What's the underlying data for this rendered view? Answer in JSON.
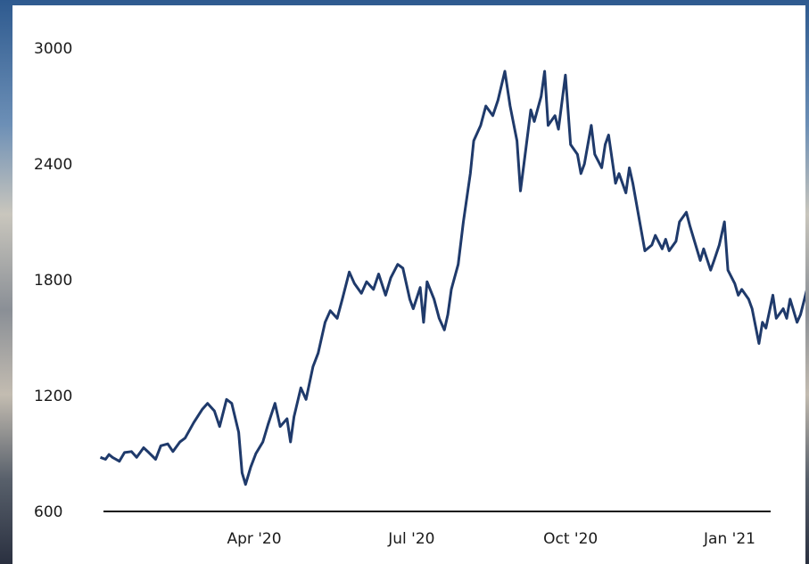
{
  "colors": {
    "line": "#1f3a6b",
    "axis": "#111111",
    "card": "#ffffff"
  },
  "chart_data": {
    "type": "line",
    "title": "",
    "xlabel": "",
    "ylabel": "",
    "ylim": [
      600,
      3000
    ],
    "y_ticks": [
      "3000",
      "2400",
      "1800",
      "1200",
      "600"
    ],
    "x_ticks": [
      {
        "label": "Apr '20",
        "date": "2020-04-01"
      },
      {
        "label": "Jul '20",
        "date": "2020-07-01"
      },
      {
        "label": "Oct '20",
        "date": "2020-10-01"
      },
      {
        "label": "Jan '21",
        "date": "2021-01-01"
      }
    ],
    "grid": false,
    "series": [
      {
        "name": "",
        "points": [
          [
            "2020-01-03",
            880
          ],
          [
            "2020-01-06",
            870
          ],
          [
            "2020-01-08",
            895
          ],
          [
            "2020-01-10",
            880
          ],
          [
            "2020-01-14",
            860
          ],
          [
            "2020-01-17",
            905
          ],
          [
            "2020-01-21",
            910
          ],
          [
            "2020-01-24",
            880
          ],
          [
            "2020-01-28",
            930
          ],
          [
            "2020-01-31",
            905
          ],
          [
            "2020-02-04",
            870
          ],
          [
            "2020-02-07",
            940
          ],
          [
            "2020-02-11",
            950
          ],
          [
            "2020-02-14",
            910
          ],
          [
            "2020-02-18",
            960
          ],
          [
            "2020-02-21",
            980
          ],
          [
            "2020-02-26",
            1060
          ],
          [
            "2020-03-02",
            1130
          ],
          [
            "2020-03-05",
            1160
          ],
          [
            "2020-03-09",
            1120
          ],
          [
            "2020-03-12",
            1040
          ],
          [
            "2020-03-16",
            1180
          ],
          [
            "2020-03-19",
            1160
          ],
          [
            "2020-03-23",
            1010
          ],
          [
            "2020-03-25",
            800
          ],
          [
            "2020-03-27",
            740
          ],
          [
            "2020-03-30",
            830
          ],
          [
            "2020-04-02",
            900
          ],
          [
            "2020-04-06",
            960
          ],
          [
            "2020-04-09",
            1050
          ],
          [
            "2020-04-13",
            1160
          ],
          [
            "2020-04-16",
            1040
          ],
          [
            "2020-04-20",
            1080
          ],
          [
            "2020-04-22",
            960
          ],
          [
            "2020-04-24",
            1090
          ],
          [
            "2020-04-28",
            1240
          ],
          [
            "2020-05-01",
            1180
          ],
          [
            "2020-05-05",
            1350
          ],
          [
            "2020-05-08",
            1420
          ],
          [
            "2020-05-12",
            1580
          ],
          [
            "2020-05-15",
            1640
          ],
          [
            "2020-05-19",
            1600
          ],
          [
            "2020-05-22",
            1700
          ],
          [
            "2020-05-26",
            1840
          ],
          [
            "2020-05-29",
            1780
          ],
          [
            "2020-06-02",
            1730
          ],
          [
            "2020-06-05",
            1790
          ],
          [
            "2020-06-09",
            1750
          ],
          [
            "2020-06-12",
            1830
          ],
          [
            "2020-06-16",
            1720
          ],
          [
            "2020-06-19",
            1810
          ],
          [
            "2020-06-23",
            1880
          ],
          [
            "2020-06-26",
            1860
          ],
          [
            "2020-06-30",
            1700
          ],
          [
            "2020-07-02",
            1650
          ],
          [
            "2020-07-06",
            1760
          ],
          [
            "2020-07-08",
            1580
          ],
          [
            "2020-07-10",
            1790
          ],
          [
            "2020-07-14",
            1700
          ],
          [
            "2020-07-17",
            1600
          ],
          [
            "2020-07-20",
            1540
          ],
          [
            "2020-07-22",
            1620
          ],
          [
            "2020-07-24",
            1750
          ],
          [
            "2020-07-28",
            1880
          ],
          [
            "2020-07-31",
            2100
          ],
          [
            "2020-08-04",
            2350
          ],
          [
            "2020-08-06",
            2520
          ],
          [
            "2020-08-10",
            2600
          ],
          [
            "2020-08-13",
            2700
          ],
          [
            "2020-08-17",
            2650
          ],
          [
            "2020-08-20",
            2730
          ],
          [
            "2020-08-24",
            2880
          ],
          [
            "2020-08-27",
            2700
          ],
          [
            "2020-08-31",
            2520
          ],
          [
            "2020-09-02",
            2260
          ],
          [
            "2020-09-04",
            2400
          ],
          [
            "2020-09-08",
            2680
          ],
          [
            "2020-09-10",
            2620
          ],
          [
            "2020-09-14",
            2750
          ],
          [
            "2020-09-16",
            2880
          ],
          [
            "2020-09-18",
            2600
          ],
          [
            "2020-09-22",
            2650
          ],
          [
            "2020-09-24",
            2580
          ],
          [
            "2020-09-28",
            2860
          ],
          [
            "2020-10-01",
            2500
          ],
          [
            "2020-10-05",
            2450
          ],
          [
            "2020-10-07",
            2350
          ],
          [
            "2020-10-09",
            2400
          ],
          [
            "2020-10-13",
            2600
          ],
          [
            "2020-10-15",
            2450
          ],
          [
            "2020-10-19",
            2380
          ],
          [
            "2020-10-21",
            2500
          ],
          [
            "2020-10-23",
            2550
          ],
          [
            "2020-10-27",
            2300
          ],
          [
            "2020-10-29",
            2350
          ],
          [
            "2020-11-02",
            2250
          ],
          [
            "2020-11-04",
            2380
          ],
          [
            "2020-11-06",
            2300
          ],
          [
            "2020-11-10",
            2100
          ],
          [
            "2020-11-13",
            1950
          ],
          [
            "2020-11-17",
            1980
          ],
          [
            "2020-11-19",
            2030
          ],
          [
            "2020-11-23",
            1960
          ],
          [
            "2020-11-25",
            2010
          ],
          [
            "2020-11-27",
            1950
          ],
          [
            "2020-12-01",
            2000
          ],
          [
            "2020-12-03",
            2100
          ],
          [
            "2020-12-07",
            2150
          ],
          [
            "2020-12-09",
            2080
          ],
          [
            "2020-12-11",
            2020
          ],
          [
            "2020-12-15",
            1900
          ],
          [
            "2020-12-17",
            1960
          ],
          [
            "2020-12-21",
            1850
          ],
          [
            "2020-12-23",
            1900
          ],
          [
            "2020-12-26",
            1980
          ],
          [
            "2020-12-29",
            2100
          ],
          [
            "2020-12-31",
            1850
          ],
          [
            "2021-01-04",
            1780
          ],
          [
            "2021-01-06",
            1720
          ],
          [
            "2021-01-08",
            1750
          ],
          [
            "2021-01-12",
            1700
          ],
          [
            "2021-01-14",
            1650
          ],
          [
            "2021-01-18",
            1470
          ],
          [
            "2021-01-20",
            1580
          ],
          [
            "2021-01-22",
            1550
          ],
          [
            "2021-01-26",
            1720
          ],
          [
            "2021-01-28",
            1600
          ],
          [
            "2021-02-01",
            1650
          ],
          [
            "2021-02-03",
            1600
          ],
          [
            "2021-02-05",
            1700
          ],
          [
            "2021-02-09",
            1580
          ],
          [
            "2021-02-11",
            1620
          ],
          [
            "2021-02-15",
            1760
          ],
          [
            "2021-02-17",
            1800
          ],
          [
            "2021-02-19",
            1700
          ],
          [
            "2021-02-23",
            1790
          ],
          [
            "2021-02-25",
            1720
          ],
          [
            "2021-03-01",
            1850
          ],
          [
            "2021-03-03",
            1920
          ],
          [
            "2021-03-05",
            1870
          ],
          [
            "2021-03-08",
            1780
          ],
          [
            "2021-03-10",
            1800
          ]
        ]
      }
    ]
  }
}
